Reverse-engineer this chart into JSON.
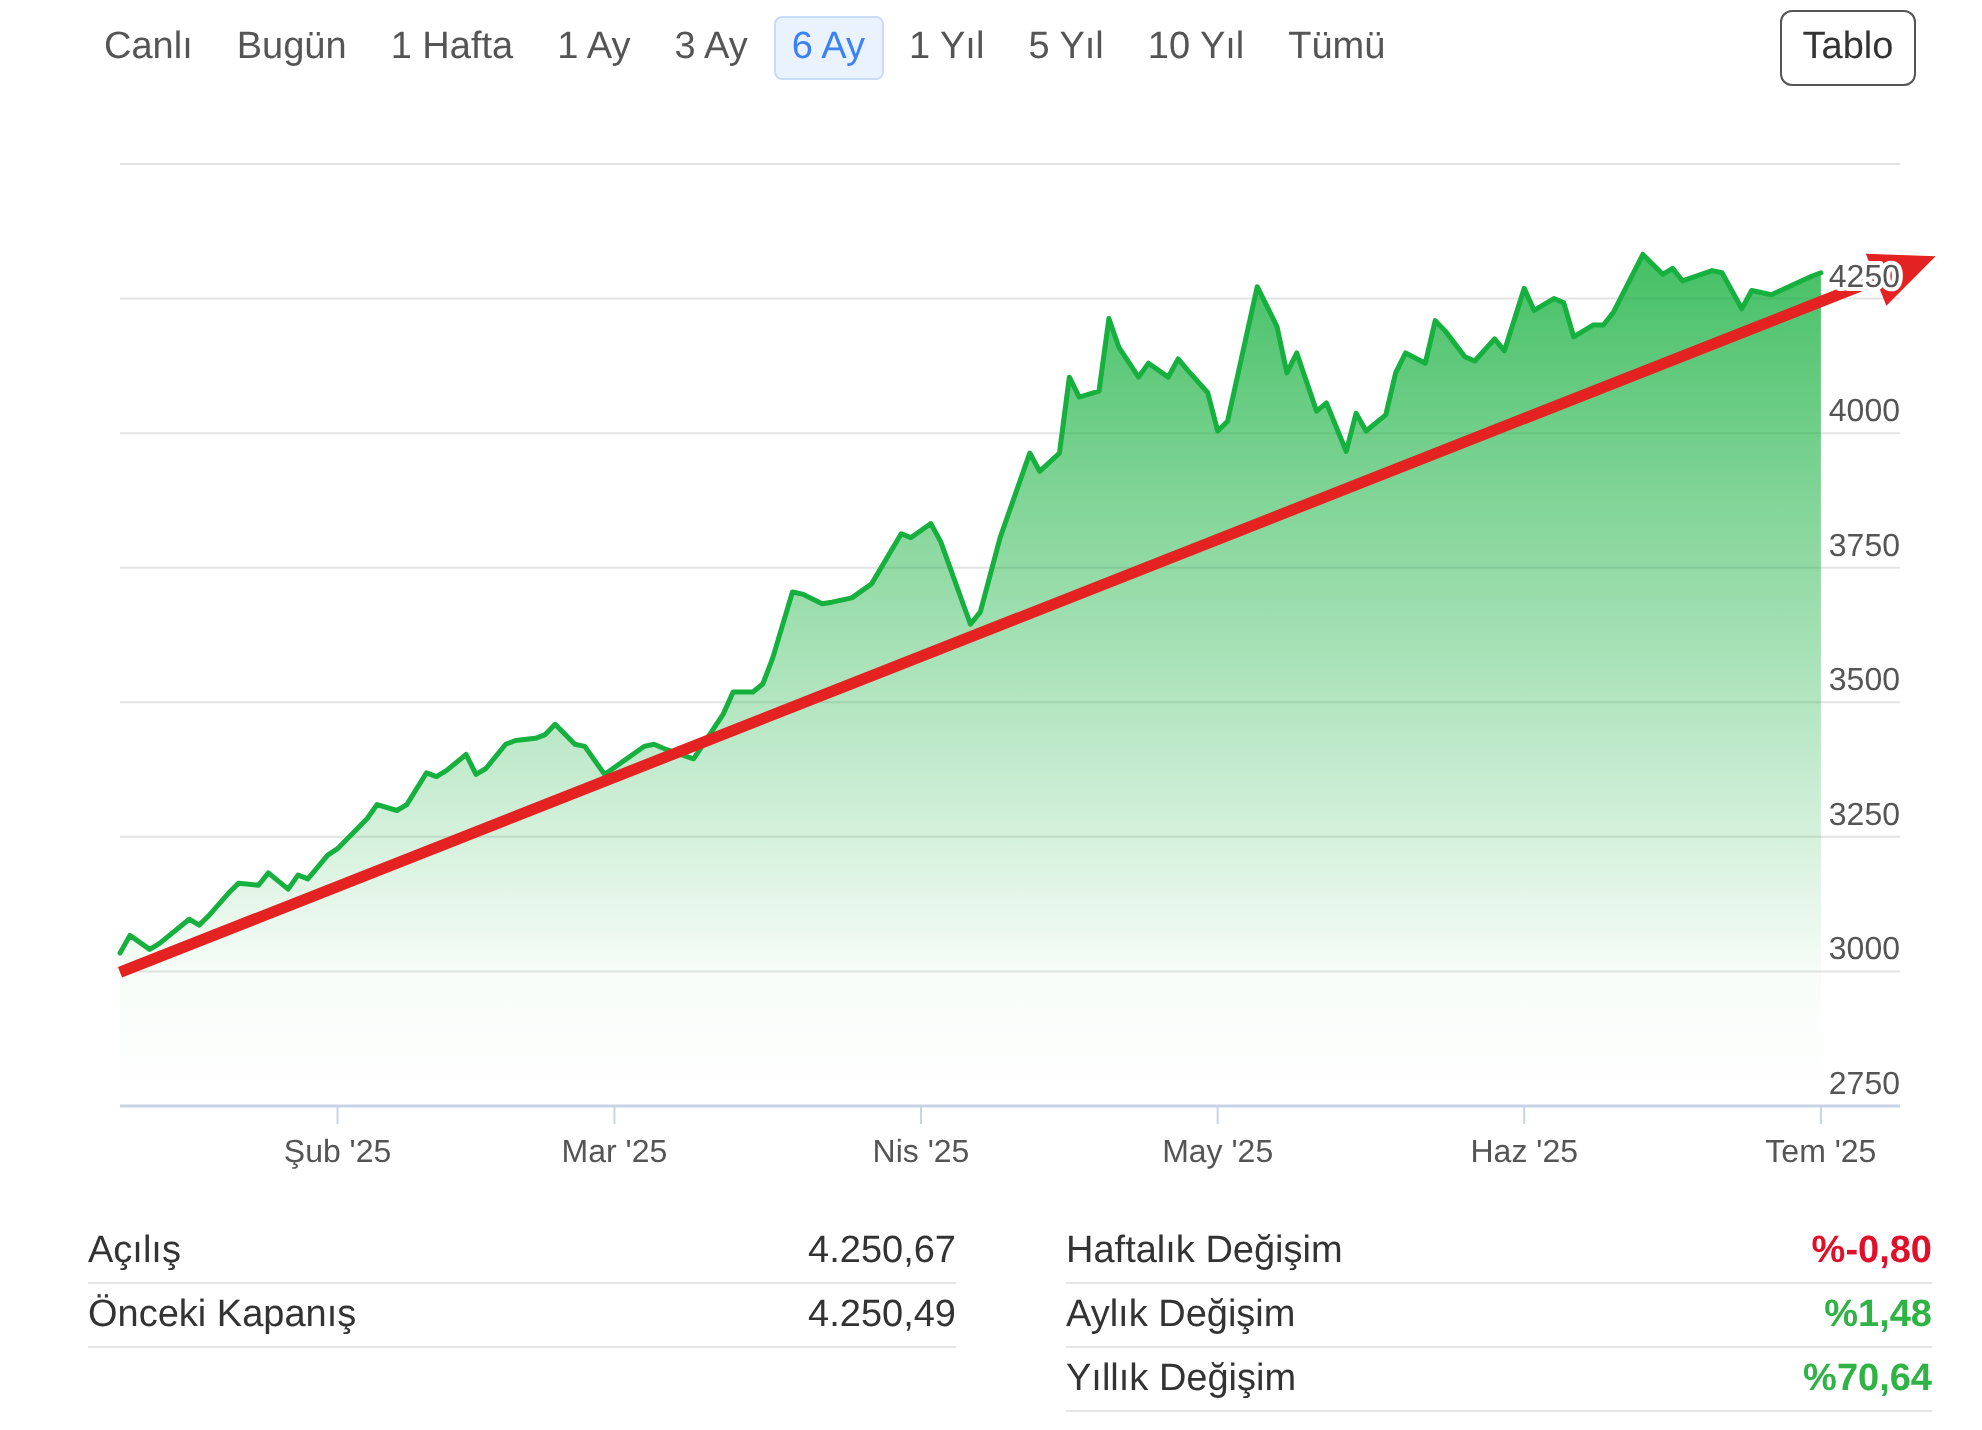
{
  "chart_data": {
    "type": "area",
    "x": [
      "2025-01-10",
      "2025-01-11",
      "2025-01-13",
      "2025-01-14",
      "2025-01-17",
      "2025-01-18",
      "2025-01-19",
      "2025-01-21",
      "2025-01-22",
      "2025-01-24",
      "2025-01-25",
      "2025-01-27",
      "2025-01-28",
      "2025-01-29",
      "2025-01-31",
      "2025-02-01",
      "2025-02-04",
      "2025-02-05",
      "2025-02-07",
      "2025-02-08",
      "2025-02-10",
      "2025-02-11",
      "2025-02-12",
      "2025-02-14",
      "2025-02-15",
      "2025-02-16",
      "2025-02-18",
      "2025-02-19",
      "2025-02-21",
      "2025-02-22",
      "2025-02-23",
      "2025-02-25",
      "2025-02-26",
      "2025-02-28",
      "2025-03-01",
      "2025-03-03",
      "2025-03-04",
      "2025-03-05",
      "2025-03-06",
      "2025-03-08",
      "2025-03-09",
      "2025-03-11",
      "2025-03-12",
      "2025-03-13",
      "2025-03-15",
      "2025-03-16",
      "2025-03-17",
      "2025-03-19",
      "2025-03-20",
      "2025-03-22",
      "2025-03-23",
      "2025-03-25",
      "2025-03-27",
      "2025-03-30",
      "2025-03-31",
      "2025-04-02",
      "2025-04-03",
      "2025-04-06",
      "2025-04-07",
      "2025-04-09",
      "2025-04-12",
      "2025-04-13",
      "2025-04-15",
      "2025-04-16",
      "2025-04-17",
      "2025-04-19",
      "2025-04-20",
      "2025-04-21",
      "2025-04-23",
      "2025-04-24",
      "2025-04-26",
      "2025-04-27",
      "2025-04-28",
      "2025-04-30",
      "2025-05-01",
      "2025-05-02",
      "2025-05-05",
      "2025-05-07",
      "2025-05-08",
      "2025-05-09",
      "2025-05-11",
      "2025-05-12",
      "2025-05-14",
      "2025-05-15",
      "2025-05-16",
      "2025-05-18",
      "2025-05-19",
      "2025-05-20",
      "2025-05-22",
      "2025-05-23",
      "2025-05-24",
      "2025-05-26",
      "2025-05-27",
      "2025-05-29",
      "2025-05-30",
      "2025-06-01",
      "2025-06-02",
      "2025-06-04",
      "2025-06-05",
      "2025-06-06",
      "2025-06-08",
      "2025-06-09",
      "2025-06-10",
      "2025-06-13",
      "2025-06-15",
      "2025-06-16",
      "2025-06-17",
      "2025-06-20",
      "2025-06-21",
      "2025-06-23",
      "2025-06-24",
      "2025-06-26",
      "2025-06-27",
      "2025-06-30",
      "2025-07-01"
    ],
    "series": [
      {
        "color": "#16b03e",
        "values": [
          3034,
          3067,
          3041,
          3052,
          3097,
          3086,
          3104,
          3146,
          3164,
          3160,
          3183,
          3153,
          3179,
          3172,
          3216,
          3228,
          3284,
          3310,
          3299,
          3310,
          3369,
          3362,
          3373,
          3403,
          3366,
          3377,
          3422,
          3429,
          3433,
          3440,
          3459,
          3422,
          3418,
          3366,
          null,
          null,
          3418,
          3422,
          3414,
          null,
          3395,
          null,
          3478,
          3519,
          3519,
          3534,
          3582,
          3705,
          3701,
          3683,
          3686,
          3694,
          3720,
          3813,
          3806,
          3832,
          3798,
          3645,
          3668,
          3806,
          3963,
          3929,
          3963,
          4104,
          4067,
          4078,
          4213,
          4160,
          4104,
          4130,
          4104,
          4138,
          4116,
          4075,
          4004,
          4022,
          4272,
          4198,
          4112,
          4149,
          4041,
          4056,
          3966,
          4037,
          4004,
          4034,
          4112,
          4149,
          4130,
          4209,
          4190,
          4142,
          4134,
          4175,
          4153,
          4269,
          4228,
          4250,
          4242,
          4179,
          4201,
          4201,
          4224,
          4332,
          4295,
          4306,
          4283,
          4302,
          4298,
          4231,
          4265,
          4257,
          null,
          4291,
          4298
        ]
      }
    ],
    "xlim": [
      "2025-01-10",
      "2025-07-09"
    ],
    "xticks": [
      {
        "value": "2025-02-01",
        "label": "Şub '25"
      },
      {
        "value": "2025-03-01",
        "label": "Mar '25"
      },
      {
        "value": "2025-04-01",
        "label": "Nis '25"
      },
      {
        "value": "2025-05-01",
        "label": "May '25"
      },
      {
        "value": "2025-06-01",
        "label": "Haz '25"
      },
      {
        "value": "2025-07-01",
        "label": "Tem '25"
      }
    ],
    "ylim": [
      2750,
      4500
    ],
    "yticks": [
      2750,
      3000,
      3250,
      3500,
      3750,
      4000,
      4250,
      {
        "value": 4500,
        "label": null
      }
    ],
    "grid": "y",
    "annotations": [
      "Canlı",
      "Bugün",
      "1 Hafta",
      "1 Ay",
      "3 Ay",
      "6 Ay",
      "1 Yıl",
      "5 Yıl",
      "10 Yıl",
      "Tümü",
      "Tablo",
      "Açılış",
      "4.250,67",
      "Önceki Kapanış",
      "4.250,49",
      "Haftalık Değişim",
      "%-0,80",
      "Aylık Değişim",
      "%1,48",
      "Yıllık Değişim",
      "%70,64"
    ]
  }
}
